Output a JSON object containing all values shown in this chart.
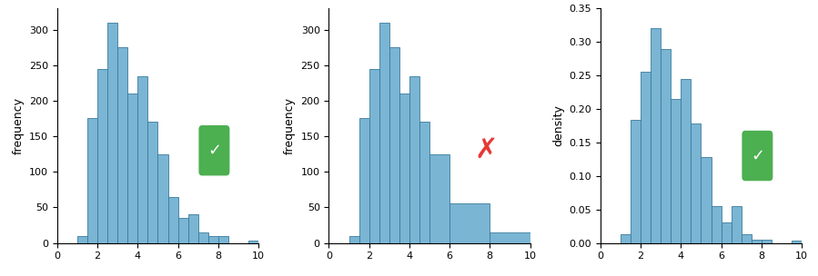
{
  "bar_color": "#7ab5d3",
  "edge_color": "#3a7a9c",
  "ylabel1": "frequency",
  "ylabel2": "frequency",
  "ylabel3": "density",
  "xlim": [
    0,
    10
  ],
  "xticks": [
    0,
    2,
    4,
    6,
    8,
    10
  ],
  "bar_width": 0.5,
  "plot1_bins_left": [
    1.0,
    1.5,
    2.0,
    2.5,
    3.0,
    3.5,
    4.0,
    4.5,
    5.0,
    5.5,
    6.0,
    6.5,
    7.0,
    7.5,
    8.0,
    8.5,
    9.0,
    9.5
  ],
  "plot1_heights": [
    10,
    175,
    245,
    310,
    275,
    210,
    235,
    170,
    125,
    65,
    35,
    40,
    15,
    10,
    10,
    0,
    0,
    3
  ],
  "plot2_bins_left": [
    1.0,
    1.5,
    2.0,
    2.5,
    3.0,
    3.5,
    4.0,
    4.5,
    5.0,
    6.0,
    8.0
  ],
  "plot2_widths": [
    0.5,
    0.5,
    0.5,
    0.5,
    0.5,
    0.5,
    0.5,
    0.5,
    1.0,
    2.0,
    2.0
  ],
  "plot2_heights": [
    10,
    175,
    245,
    310,
    275,
    210,
    235,
    170,
    125,
    55,
    15
  ],
  "plot3_bins_left": [
    1.0,
    1.5,
    2.0,
    2.5,
    3.0,
    3.5,
    4.0,
    4.5,
    5.0,
    5.5,
    6.0,
    6.5,
    7.0,
    7.5,
    8.0,
    8.5,
    9.0,
    9.5
  ],
  "plot3_heights": [
    0.013,
    0.183,
    0.256,
    0.32,
    0.289,
    0.215,
    0.244,
    0.178,
    0.128,
    0.055,
    0.03,
    0.055,
    0.013,
    0.005,
    0.005,
    0.0,
    0.0,
    0.003
  ],
  "checkmark_color": "#4caf50",
  "cross_color": "#e53935",
  "icon_size": 32
}
